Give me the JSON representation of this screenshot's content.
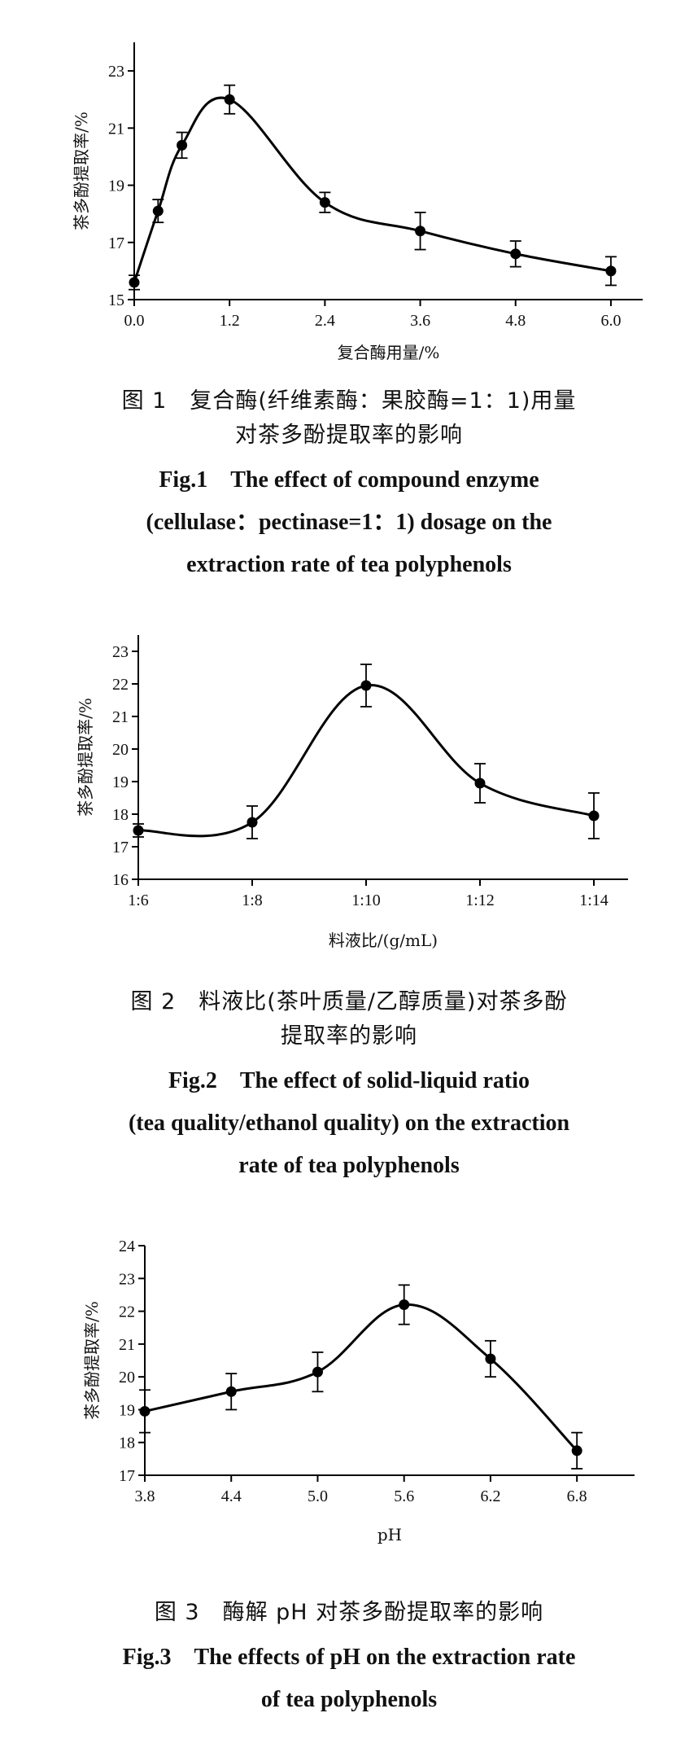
{
  "chart_data": [
    {
      "type": "line",
      "xlabel": "复合酶用量/%",
      "ylabel": "茶多酚提取率/%",
      "x_ticks": [
        "0.0",
        "1.2",
        "2.4",
        "3.6",
        "4.8",
        "6.0"
      ],
      "y_ticks": [
        "15",
        "17",
        "19",
        "21",
        "23"
      ],
      "xlim": [
        0,
        6.4
      ],
      "ylim": [
        15,
        24
      ],
      "series": [
        {
          "x": [
            0.0,
            0.3,
            0.6,
            1.2,
            2.4,
            3.6,
            4.8,
            6.0
          ],
          "y": [
            15.6,
            18.1,
            20.4,
            22.0,
            18.4,
            17.4,
            16.6,
            16.0
          ],
          "err": [
            0.25,
            0.4,
            0.45,
            0.5,
            0.35,
            0.65,
            0.45,
            0.5
          ]
        }
      ],
      "caption": {
        "cn": [
          "图 1　复合酶(纤维素酶：果胶酶=1：1)用量",
          "对茶多酚提取率的影响"
        ],
        "en": [
          "Fig.1　The effect of compound enzyme",
          "(cellulase：pectinase=1：1) dosage on the",
          "extraction rate of tea polyphenols"
        ]
      }
    },
    {
      "type": "line",
      "xlabel": "料液比/(g/mL)",
      "ylabel": "茶多酚提取率/%",
      "x_ticks": [
        "1:6",
        "1:8",
        "1:10",
        "1:12",
        "1:14"
      ],
      "y_ticks": [
        "16",
        "17",
        "18",
        "19",
        "20",
        "21",
        "22",
        "23"
      ],
      "xlim": [
        0,
        4.3
      ],
      "ylim": [
        16,
        23.5
      ],
      "series": [
        {
          "x": [
            0,
            1,
            2,
            3,
            4
          ],
          "y": [
            17.5,
            17.75,
            21.95,
            18.95,
            17.95
          ],
          "err": [
            0.2,
            0.5,
            0.65,
            0.6,
            0.7
          ]
        }
      ],
      "caption": {
        "cn": [
          "图 2　料液比(茶叶质量/乙醇质量)对茶多酚",
          "提取率的影响"
        ],
        "en": [
          "Fig.2　The effect of solid-liquid ratio",
          "(tea quality/ethanol quality) on the extraction",
          "rate of tea polyphenols"
        ]
      }
    },
    {
      "type": "line",
      "xlabel": "pH",
      "ylabel": "茶多酚提取率/%",
      "x_ticks": [
        "3.8",
        "4.4",
        "5.0",
        "5.6",
        "6.2",
        "6.8"
      ],
      "y_ticks": [
        "17",
        "18",
        "19",
        "20",
        "21",
        "22",
        "23",
        "24"
      ],
      "xlim": [
        3.8,
        7.2
      ],
      "ylim": [
        17,
        24
      ],
      "series": [
        {
          "x": [
            3.8,
            4.4,
            5.0,
            5.6,
            6.2,
            6.8
          ],
          "y": [
            18.95,
            19.55,
            20.15,
            22.2,
            20.55,
            17.75
          ],
          "err": [
            0.65,
            0.55,
            0.6,
            0.6,
            0.55,
            0.55
          ]
        }
      ],
      "caption": {
        "cn": [
          "图 3　酶解 pH 对茶多酚提取率的影响"
        ],
        "en": [
          "Fig.3　The effects of pH on the extraction rate",
          "of tea polyphenols"
        ]
      }
    }
  ]
}
